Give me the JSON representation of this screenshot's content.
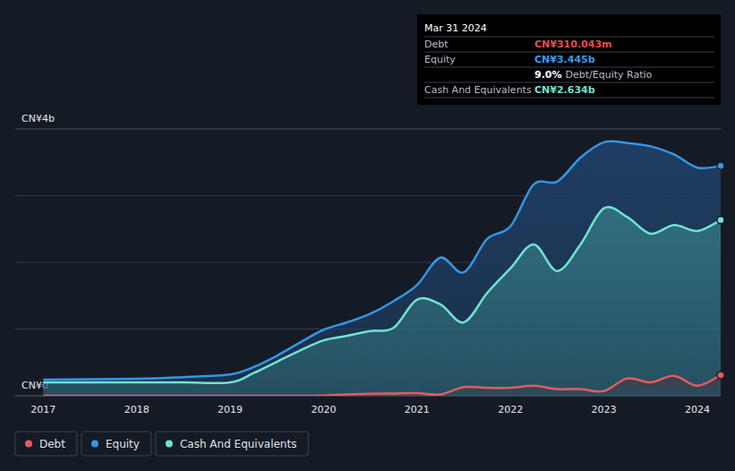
{
  "chart_data": {
    "type": "area",
    "x": [
      2017.0,
      2018.0,
      2018.5,
      2019.0,
      2019.25,
      2019.5,
      2019.75,
      2020.0,
      2020.25,
      2020.5,
      2020.75,
      2021.0,
      2021.25,
      2021.5,
      2021.75,
      2022.0,
      2022.25,
      2022.5,
      2022.75,
      2023.0,
      2023.25,
      2023.5,
      2023.75,
      2024.0,
      2024.25
    ],
    "series": [
      {
        "name": "Debt",
        "color": "#e35d5d",
        "values": [
          0,
          0,
          0,
          0,
          0,
          0,
          0,
          0.005,
          0.02,
          0.03,
          0.035,
          0.04,
          0.02,
          0.13,
          0.12,
          0.12,
          0.15,
          0.1,
          0.1,
          0.07,
          0.26,
          0.2,
          0.3,
          0.15,
          0.310043
        ]
      },
      {
        "name": "Equity",
        "color": "#3496e6",
        "values": [
          0.24,
          0.255,
          0.28,
          0.32,
          0.43,
          0.6,
          0.8,
          0.99,
          1.1,
          1.23,
          1.42,
          1.66,
          2.07,
          1.85,
          2.35,
          2.54,
          3.17,
          3.21,
          3.57,
          3.8,
          3.79,
          3.74,
          3.62,
          3.42,
          3.445
        ]
      },
      {
        "name": "Cash And Equivalents",
        "color": "#6fe3d2",
        "values": [
          0.2,
          0.2,
          0.2,
          0.2,
          0.34,
          0.51,
          0.68,
          0.83,
          0.9,
          0.97,
          1.02,
          1.44,
          1.37,
          1.1,
          1.54,
          1.91,
          2.27,
          1.87,
          2.27,
          2.81,
          2.68,
          2.43,
          2.56,
          2.47,
          2.634
        ]
      }
    ],
    "xlim": [
      2016.7,
      2024.25
    ],
    "xticks": [
      2017,
      2018,
      2019,
      2020,
      2021,
      2022,
      2023,
      2024
    ],
    "ylim": [
      0,
      4
    ],
    "yticks": [
      {
        "value": 0,
        "label": "CN¥0"
      },
      {
        "value": 1,
        "label": null
      },
      {
        "value": 2,
        "label": null
      },
      {
        "value": 3,
        "label": null
      },
      {
        "value": 4,
        "label": "CN¥4b"
      }
    ],
    "grid": true,
    "legend": "bottom-left",
    "annotation": {
      "title": "Mar 31 2024",
      "rows": [
        {
          "label": "Debt",
          "value": 0.310043,
          "text": "CN¥310.043m",
          "color": "#e84b4b"
        },
        {
          "label": "Equity",
          "value": 3.445,
          "text": "CN¥3.445b",
          "color": "#3a9be8"
        },
        {
          "value": 9.0,
          "text": "9.0%",
          "caption": "Debt/Equity Ratio",
          "color": "#ffffff"
        },
        {
          "label": "Cash And Equivalents",
          "value": 2.634,
          "text": "CN¥2.634b",
          "color": "#6fe3d2"
        }
      ]
    }
  }
}
